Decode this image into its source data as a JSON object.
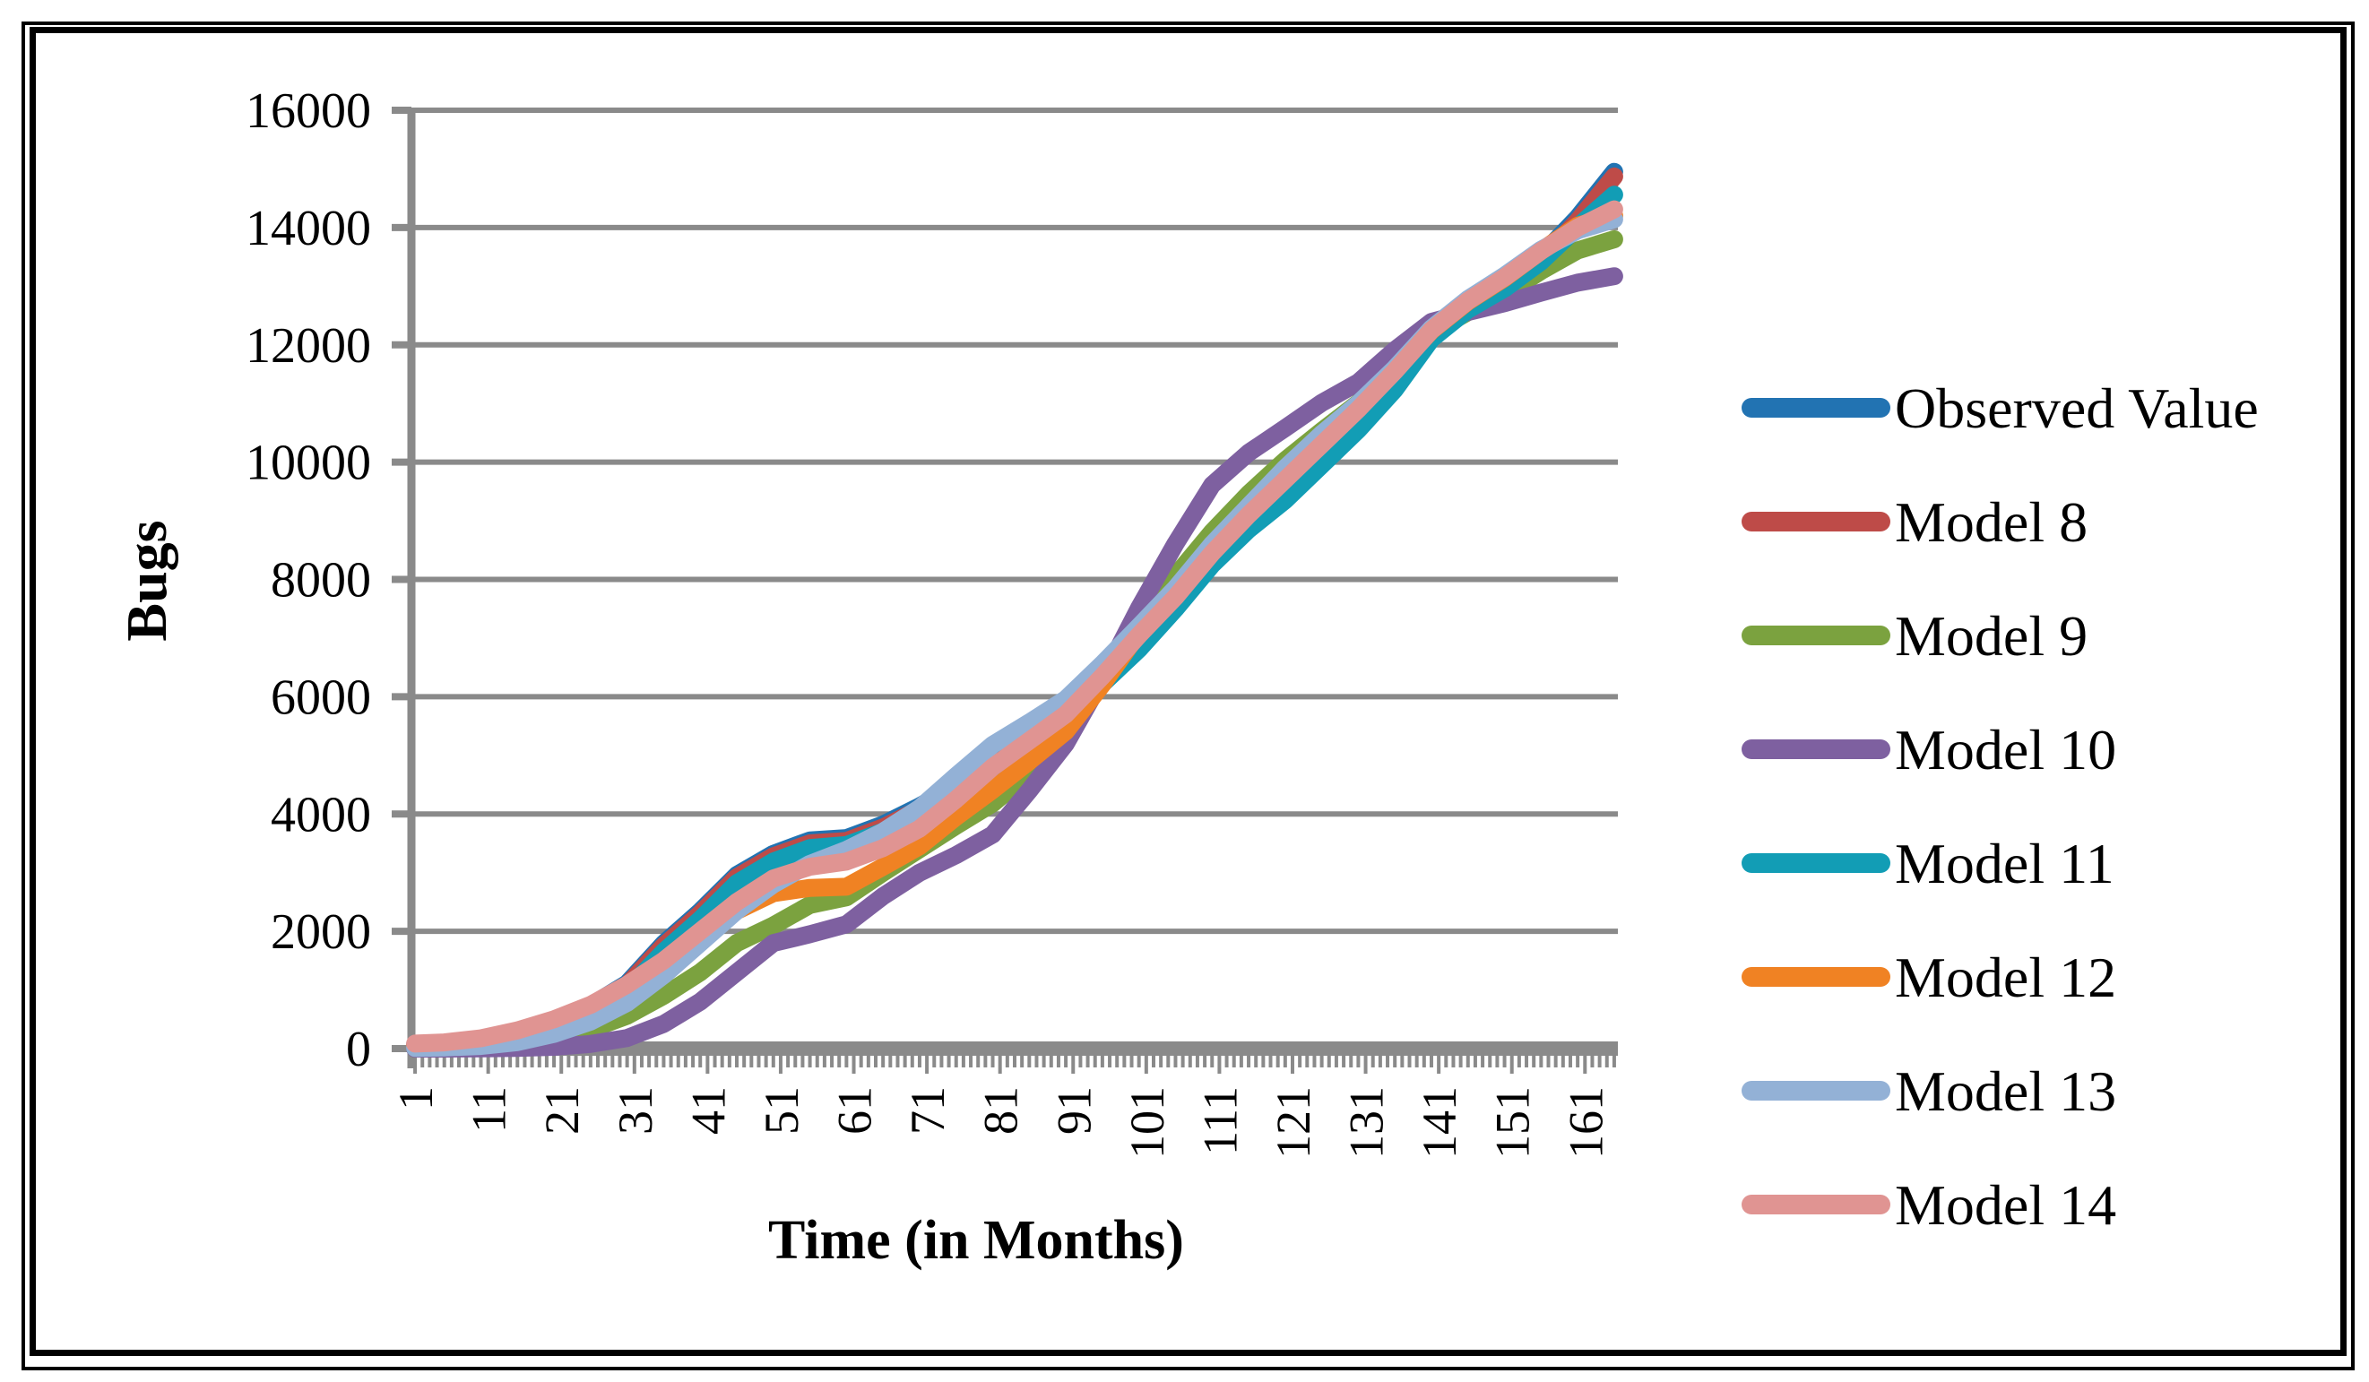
{
  "chart_data": {
    "type": "line",
    "title": "",
    "xlabel": "Time (in Months)",
    "ylabel": "Bugs",
    "ylim": [
      0,
      16000
    ],
    "y_tick_step": 2000,
    "y_tick_labels": [
      "0",
      "2000",
      "4000",
      "6000",
      "8000",
      "10000",
      "12000",
      "14000",
      "16000"
    ],
    "x_count": 165,
    "x_tick_labels": [
      "1",
      "11",
      "21",
      "31",
      "41",
      "51",
      "61",
      "71",
      "81",
      "91",
      "101",
      "111",
      "121",
      "131",
      "141",
      "151",
      "161"
    ],
    "x_label_step": 10,
    "grid": "horizontal",
    "legend_position": "right",
    "months": [
      1,
      5,
      10,
      15,
      20,
      25,
      30,
      35,
      40,
      45,
      50,
      55,
      60,
      65,
      70,
      75,
      80,
      85,
      90,
      95,
      100,
      105,
      110,
      115,
      120,
      125,
      130,
      135,
      140,
      145,
      150,
      155,
      160,
      165
    ],
    "series": [
      {
        "name": "Observed Value",
        "color": "#2273B2",
        "values": [
          70,
          95,
          165,
          300,
          490,
          730,
          1110,
          1790,
          2340,
          2960,
          3320,
          3550,
          3590,
          3820,
          4130,
          4490,
          4850,
          5290,
          5750,
          6350,
          6930,
          7620,
          8370,
          8970,
          9470,
          10070,
          10670,
          11370,
          12220,
          12720,
          13070,
          13520,
          14170,
          14950
        ]
      },
      {
        "name": "Model 8",
        "color": "#BE4B48",
        "values": [
          55,
          75,
          140,
          270,
          460,
          700,
          1080,
          1750,
          2300,
          2920,
          3280,
          3500,
          3540,
          3770,
          4080,
          4440,
          4800,
          5240,
          5690,
          6290,
          6870,
          7560,
          8310,
          8910,
          9410,
          10010,
          10610,
          11310,
          12160,
          12660,
          13010,
          13460,
          14110,
          14870
        ]
      },
      {
        "name": "Model 9",
        "color": "#7BA23F",
        "values": [
          5,
          15,
          35,
          85,
          180,
          330,
          560,
          900,
          1300,
          1800,
          2100,
          2450,
          2580,
          3000,
          3400,
          3800,
          4180,
          4700,
          5300,
          6300,
          7310,
          8060,
          8810,
          9460,
          10030,
          10530,
          11010,
          11560,
          12210,
          12560,
          12860,
          13260,
          13610,
          13800
        ]
      },
      {
        "name": "Model 10",
        "color": "#7E60A0",
        "values": [
          0,
          0,
          5,
          10,
          30,
          80,
          180,
          420,
          800,
          1300,
          1800,
          1950,
          2120,
          2600,
          3000,
          3300,
          3650,
          4400,
          5200,
          6300,
          7510,
          8610,
          9610,
          10160,
          10580,
          11010,
          11360,
          11910,
          12390,
          12560,
          12710,
          12890,
          13060,
          13170
        ]
      },
      {
        "name": "Model 11",
        "color": "#129DB5",
        "values": [
          40,
          60,
          115,
          230,
          400,
          630,
          1000,
          1650,
          2200,
          2820,
          3190,
          3420,
          3470,
          3700,
          4010,
          4370,
          4730,
          5170,
          5620,
          6220,
          6810,
          7500,
          8250,
          8850,
          9350,
          9950,
          10550,
          11240,
          12100,
          12600,
          12960,
          13420,
          14010,
          14560
        ]
      },
      {
        "name": "Model 12",
        "color": "#F08223",
        "values": [
          45,
          65,
          120,
          240,
          410,
          650,
          1000,
          1450,
          1900,
          2350,
          2650,
          2740,
          2760,
          3100,
          3450,
          3950,
          4410,
          4900,
          5410,
          6210,
          7090,
          7760,
          8510,
          9160,
          9760,
          10360,
          10960,
          11580,
          12240,
          12740,
          13140,
          13600,
          14030,
          14200
        ]
      },
      {
        "name": "Model 13",
        "color": "#93B1D6",
        "values": [
          10,
          20,
          45,
          110,
          250,
          460,
          780,
          1250,
          1800,
          2350,
          2800,
          3150,
          3390,
          3700,
          4100,
          4650,
          5180,
          5560,
          5960,
          6560,
          7200,
          7850,
          8600,
          9250,
          9900,
          10480,
          11000,
          11600,
          12280,
          12780,
          13180,
          13620,
          13950,
          14140
        ]
      },
      {
        "name": "Model 14",
        "color": "#E09492",
        "values": [
          85,
          105,
          175,
          310,
          500,
          745,
          1090,
          1500,
          2000,
          2500,
          2900,
          3100,
          3190,
          3420,
          3750,
          4250,
          4800,
          5250,
          5700,
          6350,
          7050,
          7700,
          8450,
          9100,
          9700,
          10300,
          10900,
          11550,
          12250,
          12750,
          13150,
          13600,
          14000,
          14310
        ]
      }
    ]
  },
  "colors": {
    "grid": "#8A8A8A",
    "axis": "#8A8A8A",
    "text": "#000000",
    "background": "#FFFFFF",
    "frame": "#000000"
  }
}
